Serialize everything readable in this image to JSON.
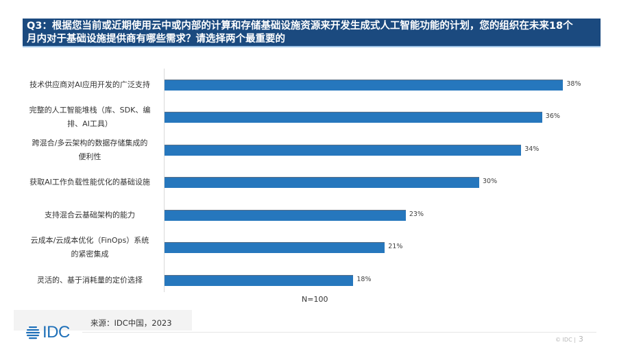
{
  "header": {
    "title_line1": "Q3：根据您当前或近期使用云中或内部的计算和存储基础设施资源来开发生成式人工智能功能的计划，您的组织在未来18个",
    "title_line2": "月内对于基础设施提供商有哪些需求？请选择两个最重要的"
  },
  "chart_data": {
    "type": "bar",
    "orientation": "horizontal",
    "title": "Q3：根据您当前或近期使用云中或内部的计算和存储基础设施资源来开发生成式人工智能功能的计划，您的组织在未来18个月内对于基础设施提供商有哪些需求？请选择两个最重要的",
    "categories": [
      "技术供应商对AI应用开发的广泛支持",
      "完整的人工智能堆栈（库、SDK、编排、AI工具）",
      "跨混合/多云架构的数据存储集成的便利性",
      "获取AI工作负载性能优化的基础设施",
      "支持混合云基础架构的能力",
      "云成本/云成本优化（FinOps）系统的紧密集成",
      "灵活的、基于消耗量的定价选择"
    ],
    "values": [
      38,
      36,
      34,
      30,
      23,
      21,
      18
    ],
    "value_labels": [
      "38%",
      "36%",
      "34%",
      "30%",
      "23%",
      "21%",
      "18%"
    ],
    "unit": "%",
    "xlabel": "N=100",
    "ylabel": "",
    "grid": false,
    "legend": null,
    "bar_color": "#2677bd"
  },
  "rows": [
    {
      "label_lines": [
        "技术供应商对AI应用开发的广泛支持"
      ],
      "value": "38%"
    },
    {
      "label_lines": [
        "完整的人工智能堆栈（库、SDK、编",
        "排、AI工具）"
      ],
      "value": "36%"
    },
    {
      "label_lines": [
        "跨混合/多云架构的数据存储集成的",
        "便利性"
      ],
      "value": "34%"
    },
    {
      "label_lines": [
        "获取AI工作负载性能优化的基础设施"
      ],
      "value": "30%"
    },
    {
      "label_lines": [
        "支持混合云基础架构的能力"
      ],
      "value": "23%"
    },
    {
      "label_lines": [
        "云成本/云成本优化（FinOps）系统",
        "的紧密集成"
      ],
      "value": "21%"
    },
    {
      "label_lines": [
        "灵活的、基于消耗量的定价选择"
      ],
      "value": "18%"
    }
  ],
  "sample_size": "N=100",
  "footer": {
    "source": "来源：IDC中国，2023",
    "logo_text": "IDC",
    "copyright": "© IDC |",
    "page_number": "3"
  },
  "colors": {
    "banner": "#1b4a7f",
    "bar": "#2677bd",
    "logo": "#1d6fb8"
  }
}
